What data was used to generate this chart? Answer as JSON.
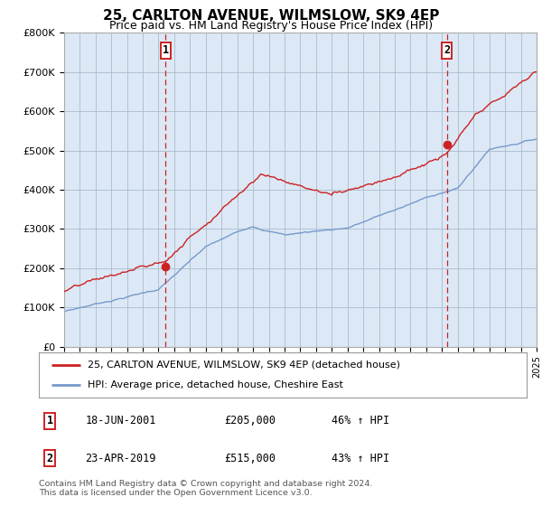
{
  "title": "25, CARLTON AVENUE, WILMSLOW, SK9 4EP",
  "subtitle": "Price paid vs. HM Land Registry's House Price Index (HPI)",
  "ylim": [
    0,
    800000
  ],
  "yticks": [
    0,
    100000,
    200000,
    300000,
    400000,
    500000,
    600000,
    700000,
    800000
  ],
  "ytick_labels": [
    "£0",
    "£100K",
    "£200K",
    "£300K",
    "£400K",
    "£500K",
    "£600K",
    "£700K",
    "£800K"
  ],
  "red_color": "#cc2222",
  "blue_color": "#7799cc",
  "dashed_color": "#cc2222",
  "chart_bg": "#dce8f5",
  "marker1_year": 2001.46,
  "marker1_value": 205000,
  "marker1_label": "1",
  "marker2_year": 2019.31,
  "marker2_value": 515000,
  "marker2_label": "2",
  "legend_entries": [
    "25, CARLTON AVENUE, WILMSLOW, SK9 4EP (detached house)",
    "HPI: Average price, detached house, Cheshire East"
  ],
  "table_rows": [
    {
      "label": "1",
      "date": "18-JUN-2001",
      "price": "£205,000",
      "hpi": "46% ↑ HPI"
    },
    {
      "label": "2",
      "date": "23-APR-2019",
      "price": "£515,000",
      "hpi": "43% ↑ HPI"
    }
  ],
  "footnote": "Contains HM Land Registry data © Crown copyright and database right 2024.\nThis data is licensed under the Open Government Licence v3.0.",
  "background_color": "#ffffff",
  "grid_color": "#aabbcc"
}
